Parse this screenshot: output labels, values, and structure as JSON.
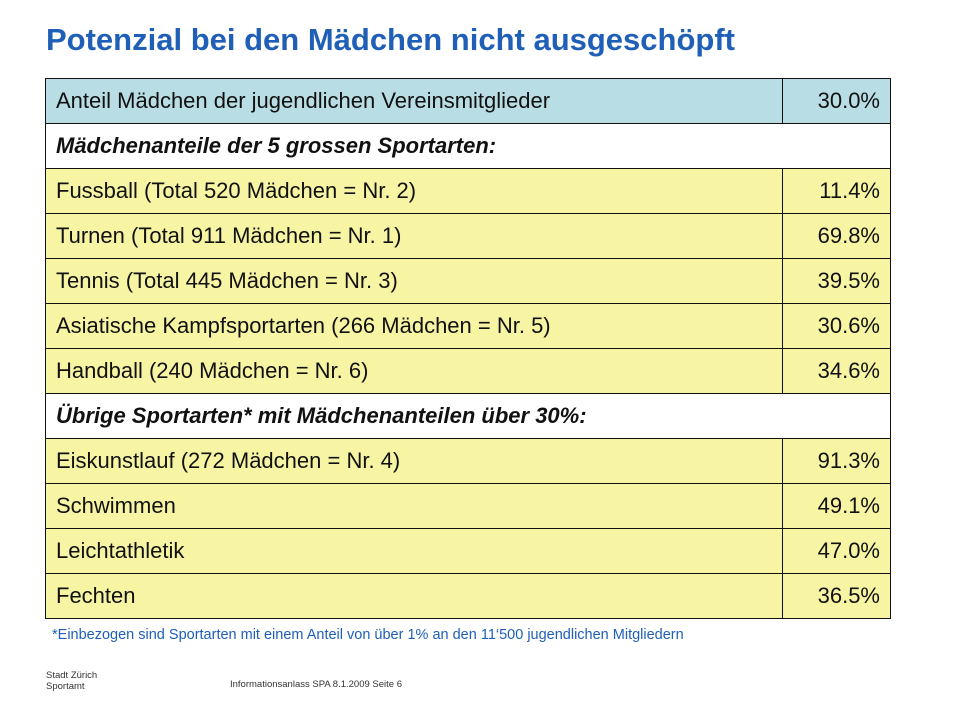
{
  "title": "Potenzial bei den Mädchen nicht ausgeschöpft",
  "table": {
    "header": {
      "label": "Anteil Mädchen der jugendlichen Vereinsmitglieder",
      "value": "30.0%"
    },
    "section1": "Mädchenanteile der 5 grossen Sportarten:",
    "group1": [
      {
        "label": "Fussball (Total 520 Mädchen = Nr. 2)",
        "value": "11.4%"
      },
      {
        "label": "Turnen (Total 911 Mädchen = Nr. 1)",
        "value": "69.8%"
      },
      {
        "label": "Tennis (Total 445 Mädchen = Nr. 3)",
        "value": "39.5%"
      },
      {
        "label": "Asiatische Kampfsportarten (266 Mädchen = Nr. 5)",
        "value": "30.6%"
      },
      {
        "label": "Handball (240 Mädchen = Nr. 6)",
        "value": "34.6%"
      }
    ],
    "section2": "Übrige Sportarten* mit Mädchenanteilen über 30%:",
    "group2": [
      {
        "label": "Eiskunstlauf (272 Mädchen = Nr. 4)",
        "value": "91.3%"
      },
      {
        "label": "Schwimmen",
        "value": "49.1%"
      },
      {
        "label": "Leichtathletik",
        "value": "47.0%"
      },
      {
        "label": "Fechten",
        "value": "36.5%"
      }
    ]
  },
  "footnote": "*Einbezogen sind Sportarten mit einem Anteil von über 1% an den 11‘500 jugendlichen Mitgliedern",
  "footer": {
    "org_line1": "Stadt Zürich",
    "org_line2": "Sportamt",
    "page_info": "Informationsanlass SPA 8.1.2009 Seite 6"
  },
  "colors": {
    "title": "#1f5fb8",
    "header_row": "#b8dde4",
    "data_row": "#f7f5a4",
    "border": "#111111"
  }
}
